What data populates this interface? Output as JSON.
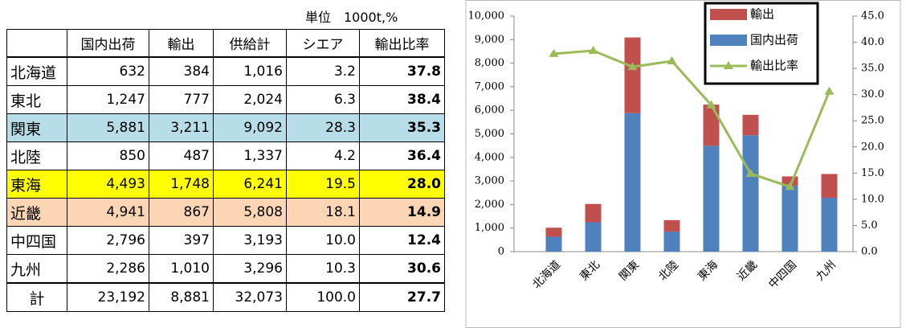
{
  "table": {
    "unit": "単位　1000t,%",
    "header": [
      "国内出荷",
      "輸出",
      "供給計",
      "シエア",
      "輸出比率"
    ],
    "rows": [
      [
        "北海道",
        "632",
        "384",
        "1,016",
        "3.2",
        "37.8"
      ],
      [
        "東北",
        "1,247",
        "777",
        "2,024",
        "6.3",
        "38.4"
      ],
      [
        "関東",
        "5,881",
        "3,211",
        "9,092",
        "28.3",
        "35.3"
      ],
      [
        "北陸",
        "850",
        "487",
        "1,337",
        "4.2",
        "36.4"
      ],
      [
        "東海",
        "4,493",
        "1,748",
        "6,241",
        "19.5",
        "28.0"
      ],
      [
        "近畿",
        "4,941",
        "867",
        "5,808",
        "18.1",
        "14.9"
      ],
      [
        "中四国",
        "2,796",
        "397",
        "3,193",
        "10.0",
        "12.4"
      ],
      [
        "九州",
        "2,286",
        "1,010",
        "3,296",
        "10.3",
        "30.6"
      ],
      [
        "計",
        "23,192",
        "8,881",
        "32,073",
        "100.0",
        "27.7"
      ]
    ]
  },
  "chart_data": {
    "type": "bar",
    "stacked": true,
    "categories": [
      "北海道",
      "東北",
      "関東",
      "北陸",
      "東海",
      "近畿",
      "中四国",
      "九州"
    ],
    "series": [
      {
        "name": "国内出荷",
        "color": "#4f81bd",
        "values": [
          632,
          1247,
          5881,
          850,
          4493,
          4941,
          2796,
          2286
        ]
      },
      {
        "name": "輸出",
        "color": "#c0504d",
        "values": [
          384,
          777,
          3211,
          487,
          1748,
          867,
          397,
          1010
        ]
      },
      {
        "name": "輸出比率",
        "color": "#9bbb59",
        "type": "line",
        "axis": "y2",
        "values": [
          37.8,
          38.4,
          35.3,
          36.4,
          28.0,
          14.9,
          12.4,
          30.6
        ]
      }
    ],
    "ylim": [
      0,
      10000
    ],
    "yticks": [
      0,
      {
        "value": 1000,
        "label": "1,000"
      },
      {
        "value": 2000,
        "label": "2,000"
      },
      {
        "value": 3000,
        "label": "3,000"
      },
      {
        "value": 4000,
        "label": "4,000"
      },
      {
        "value": 5000,
        "label": "5,000"
      },
      {
        "value": 6000,
        "label": "6,000"
      },
      {
        "value": 7000,
        "label": "7,000"
      },
      {
        "value": 8000,
        "label": "8,000"
      },
      {
        "value": 9000,
        "label": "9,000"
      },
      {
        "value": 10000,
        "label": "10,000"
      }
    ],
    "y2lim": [
      0,
      45
    ],
    "y2ticks": [
      {
        "value": 0,
        "label": "0.0"
      },
      {
        "value": 5,
        "label": "5.0"
      },
      {
        "value": 10,
        "label": "10.0"
      },
      {
        "value": 15,
        "label": "15.0"
      },
      {
        "value": 20,
        "label": "20.0"
      },
      {
        "value": 25,
        "label": "25.0"
      },
      {
        "value": 30,
        "label": "30.0"
      },
      {
        "value": 35,
        "label": "35.0"
      },
      {
        "value": 40,
        "label": "40.0"
      },
      {
        "value": 45,
        "label": "45.0"
      }
    ],
    "legend": "upper right"
  }
}
